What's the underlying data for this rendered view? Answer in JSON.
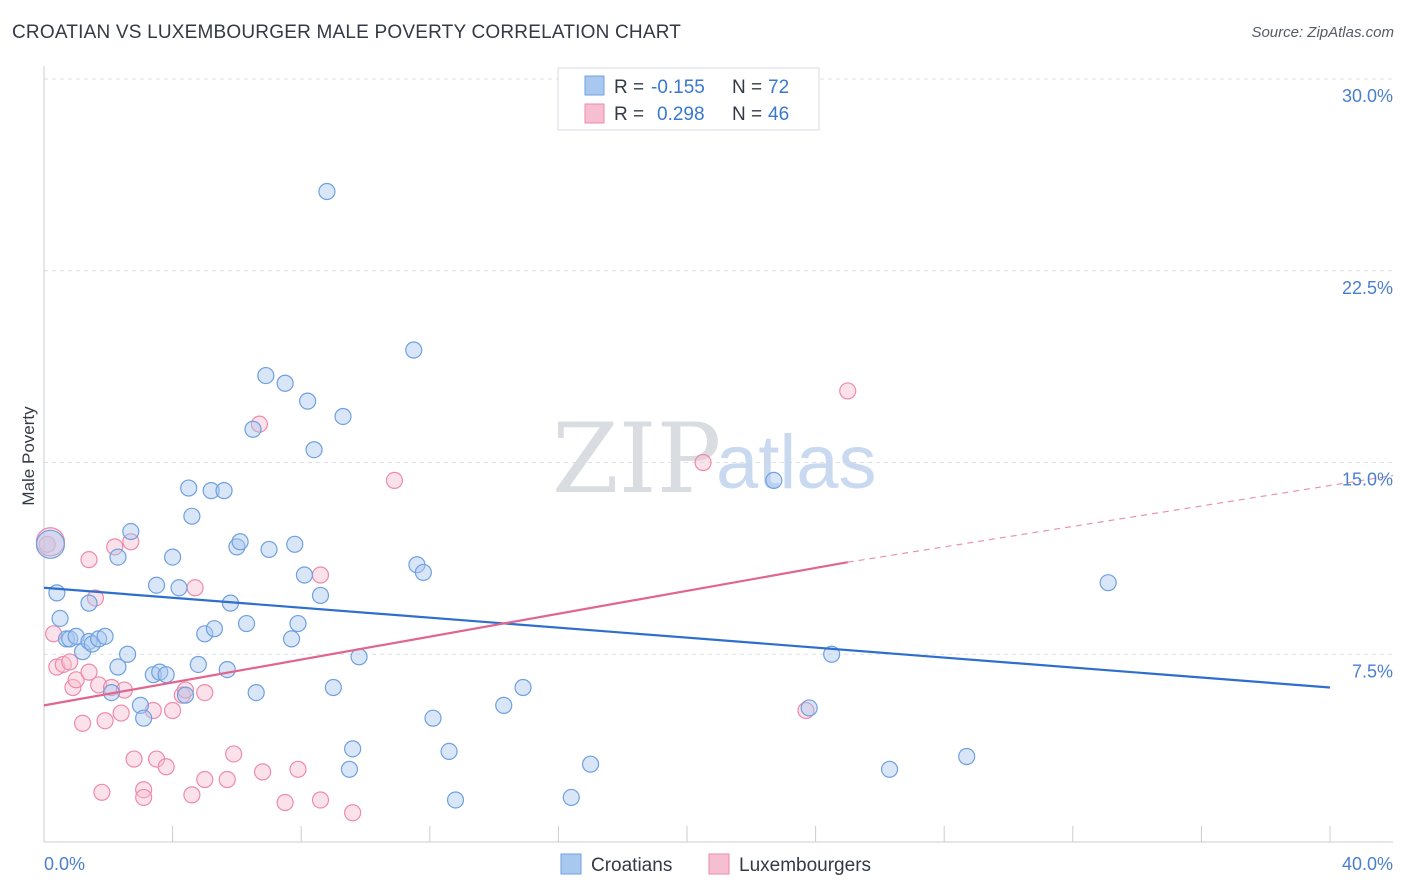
{
  "title": "CROATIAN VS LUXEMBOURGER MALE POVERTY CORRELATION CHART",
  "source": "Source: ZipAtlas.com",
  "colors": {
    "croatians": "#6fa0e0",
    "croatians_fill": "#a9c8f0",
    "croatians_line": "#2f6fcc",
    "luxembourgers": "#ee8aaa",
    "luxembourgers_fill": "#f6bfd1",
    "luxembourgers_line": "#e0658f"
  },
  "legend": {
    "rows": [
      {
        "r_label": "R =",
        "r_value": "-0.155",
        "n_label": "N =",
        "n_value": "72"
      },
      {
        "r_label": "R =",
        "r_value": "0.298",
        "n_label": "N =",
        "n_value": "46"
      }
    ]
  },
  "bottom_legend": [
    "Croatians",
    "Luxembourgers"
  ],
  "watermark": {
    "zip": "ZIP",
    "atlas": "atlas"
  },
  "chart_data": {
    "type": "scatter",
    "xlabel": "",
    "ylabel": "Male Poverty",
    "xlim": [
      0,
      40
    ],
    "ylim": [
      0,
      30
    ],
    "x_tick_labels": [
      "0.0%",
      "40.0%"
    ],
    "y_tick_labels": [
      "30.0%",
      "22.5%",
      "15.0%",
      "7.5%"
    ],
    "y_tick_values": [
      30,
      22.5,
      15,
      7.5
    ],
    "grid": "horizontal dashed",
    "legend_placement": "top-center",
    "series": [
      {
        "name": "Croatians",
        "R": -0.155,
        "N": 72,
        "trend": {
          "x": [
            0,
            40
          ],
          "y": [
            10.1,
            6.2
          ]
        },
        "points": [
          [
            0.2,
            11.8
          ],
          [
            0.4,
            9.9
          ],
          [
            0.5,
            8.9
          ],
          [
            0.7,
            8.1
          ],
          [
            0.8,
            8.1
          ],
          [
            1.0,
            8.2
          ],
          [
            1.2,
            7.6
          ],
          [
            1.4,
            8.0
          ],
          [
            1.5,
            7.9
          ],
          [
            1.7,
            8.1
          ],
          [
            1.9,
            8.2
          ],
          [
            1.4,
            9.5
          ],
          [
            2.3,
            11.3
          ],
          [
            2.7,
            12.3
          ],
          [
            2.6,
            7.5
          ],
          [
            2.3,
            7.0
          ],
          [
            2.1,
            6.0
          ],
          [
            3.0,
            5.5
          ],
          [
            3.1,
            5.0
          ],
          [
            3.4,
            6.7
          ],
          [
            3.5,
            10.2
          ],
          [
            3.6,
            6.8
          ],
          [
            3.8,
            6.7
          ],
          [
            4.0,
            11.3
          ],
          [
            4.2,
            10.1
          ],
          [
            4.4,
            5.9
          ],
          [
            4.5,
            14.0
          ],
          [
            4.6,
            12.9
          ],
          [
            4.8,
            7.1
          ],
          [
            5.0,
            8.3
          ],
          [
            5.2,
            13.9
          ],
          [
            5.3,
            8.5
          ],
          [
            5.6,
            13.9
          ],
          [
            5.7,
            6.9
          ],
          [
            5.8,
            9.5
          ],
          [
            6.0,
            11.7
          ],
          [
            6.1,
            11.9
          ],
          [
            6.3,
            8.7
          ],
          [
            6.5,
            16.3
          ],
          [
            6.6,
            6.0
          ],
          [
            6.9,
            18.4
          ],
          [
            7.0,
            11.6
          ],
          [
            7.5,
            18.1
          ],
          [
            7.7,
            8.1
          ],
          [
            7.8,
            11.8
          ],
          [
            7.9,
            8.7
          ],
          [
            8.1,
            10.6
          ],
          [
            8.2,
            17.4
          ],
          [
            8.4,
            15.5
          ],
          [
            8.6,
            9.8
          ],
          [
            8.8,
            25.6
          ],
          [
            9.0,
            6.2
          ],
          [
            9.3,
            16.8
          ],
          [
            9.5,
            3.0
          ],
          [
            9.6,
            3.8
          ],
          [
            9.8,
            7.4
          ],
          [
            11.5,
            19.4
          ],
          [
            11.6,
            11.0
          ],
          [
            11.8,
            10.7
          ],
          [
            12.1,
            5.0
          ],
          [
            12.6,
            3.7
          ],
          [
            12.8,
            1.8
          ],
          [
            14.3,
            5.5
          ],
          [
            14.9,
            6.2
          ],
          [
            16.4,
            1.9
          ],
          [
            17.0,
            3.2
          ],
          [
            22.7,
            14.3
          ],
          [
            24.5,
            7.5
          ],
          [
            26.3,
            3.0
          ],
          [
            28.7,
            3.5
          ],
          [
            33.1,
            10.3
          ],
          [
            23.8,
            5.4
          ]
        ]
      },
      {
        "name": "Luxembourgers",
        "R": 0.298,
        "N": 46,
        "trend": {
          "x": [
            0,
            25
          ],
          "y": [
            5.5,
            11.1
          ]
        },
        "trend_dashed": {
          "x": [
            25,
            42
          ],
          "y": [
            11.1,
            14.5
          ]
        },
        "points": [
          [
            0.1,
            11.8
          ],
          [
            0.3,
            8.3
          ],
          [
            0.4,
            7.0
          ],
          [
            0.6,
            7.1
          ],
          [
            0.8,
            7.2
          ],
          [
            0.9,
            6.2
          ],
          [
            1.0,
            6.5
          ],
          [
            1.2,
            4.8
          ],
          [
            1.4,
            6.8
          ],
          [
            1.4,
            11.2
          ],
          [
            1.6,
            9.7
          ],
          [
            1.7,
            6.3
          ],
          [
            1.8,
            2.1
          ],
          [
            1.9,
            4.9
          ],
          [
            2.1,
            6.2
          ],
          [
            2.2,
            11.7
          ],
          [
            2.4,
            5.2
          ],
          [
            2.5,
            6.1
          ],
          [
            2.7,
            11.9
          ],
          [
            2.8,
            3.4
          ],
          [
            3.1,
            2.2
          ],
          [
            3.1,
            1.9
          ],
          [
            3.4,
            5.3
          ],
          [
            3.5,
            3.4
          ],
          [
            3.8,
            3.1
          ],
          [
            4.0,
            5.3
          ],
          [
            4.3,
            5.9
          ],
          [
            4.4,
            6.1
          ],
          [
            4.6,
            2.0
          ],
          [
            4.7,
            10.1
          ],
          [
            5.0,
            2.6
          ],
          [
            5.0,
            6.0
          ],
          [
            5.7,
            2.6
          ],
          [
            5.9,
            3.6
          ],
          [
            6.7,
            16.5
          ],
          [
            6.8,
            2.9
          ],
          [
            7.5,
            1.7
          ],
          [
            7.9,
            3.0
          ],
          [
            8.6,
            10.6
          ],
          [
            8.6,
            1.8
          ],
          [
            9.6,
            1.3
          ],
          [
            10.9,
            14.3
          ],
          [
            20.5,
            15.0
          ],
          [
            23.7,
            5.3
          ],
          [
            25.0,
            17.8
          ],
          [
            0.2,
            11.9
          ]
        ]
      }
    ]
  }
}
